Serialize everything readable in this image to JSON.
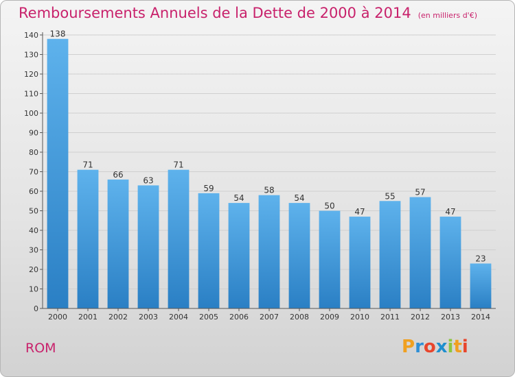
{
  "title": "Remboursements Annuels de la Dette de 2000 à 2014",
  "unit": "(en milliers d'€)",
  "commune": "ROM",
  "logo": {
    "letters": [
      "P",
      "r",
      "o",
      "x",
      "i",
      "t",
      "i"
    ],
    "colors": [
      "#f0a020",
      "#2e8fd6",
      "#e8452c",
      "#1f8fce",
      "#8cc63f",
      "#f0a020",
      "#e8452c"
    ]
  },
  "colors": {
    "title": "#c8216b",
    "bar_light": "#5eb2ec",
    "bar_dark": "#2a7fc4",
    "axis": "#555555",
    "grid": "#cfcfcf"
  },
  "chart_data": {
    "type": "bar",
    "categories": [
      "2000",
      "2001",
      "2002",
      "2003",
      "2004",
      "2005",
      "2006",
      "2007",
      "2008",
      "2009",
      "2010",
      "2011",
      "2012",
      "2013",
      "2014"
    ],
    "values": [
      138,
      71,
      66,
      63,
      71,
      59,
      54,
      58,
      54,
      50,
      47,
      55,
      57,
      47,
      23
    ],
    "title": "Remboursements Annuels de la Dette de 2000 à 2014",
    "ylim": [
      0,
      140
    ],
    "yticks": [
      0,
      10,
      20,
      30,
      40,
      50,
      60,
      70,
      80,
      90,
      100,
      110,
      120,
      130,
      140
    ],
    "grid": true
  }
}
